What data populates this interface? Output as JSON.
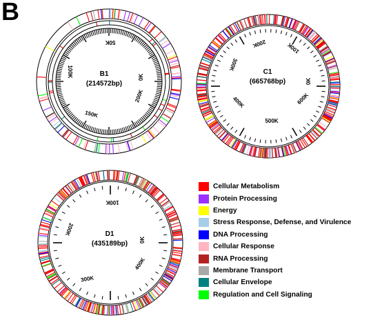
{
  "panel_label": "B",
  "maps": [
    {
      "id": "B1",
      "name": "B1",
      "length_text": "(214572bp)",
      "tick_labels": [
        "50K",
        "100K",
        "150K",
        "200K",
        "0K"
      ]
    },
    {
      "id": "C1",
      "name": "C1",
      "length_text": "(665768bp)",
      "tick_labels": [
        "100K",
        "200K",
        "300K",
        "400K",
        "500K",
        "600K",
        "0K"
      ]
    },
    {
      "id": "D1",
      "name": "D1",
      "length_text": "(435189bp)",
      "tick_labels": [
        "100K",
        "200K",
        "300K",
        "400K",
        "0K"
      ]
    }
  ],
  "legend": [
    {
      "label": "Cellular Metabolism",
      "color": "#ff0000"
    },
    {
      "label": "Protein Processing",
      "color": "#9b30ff"
    },
    {
      "label": "Energy",
      "color": "#ffff00"
    },
    {
      "label": "Stress Response, Defense, and Virulence",
      "color": "#a6cee8"
    },
    {
      "label": "DNA Processing",
      "color": "#0000ff"
    },
    {
      "label": "Cellular Response",
      "color": "#ffb6c1"
    },
    {
      "label": "RNA Processing",
      "color": "#b22222"
    },
    {
      "label": "Membrane Transport",
      "color": "#a9a9a9"
    },
    {
      "label": "Cellular Envelope",
      "color": "#008080"
    },
    {
      "label": "Regulation and Cell Signaling",
      "color": "#00ff00"
    }
  ]
}
